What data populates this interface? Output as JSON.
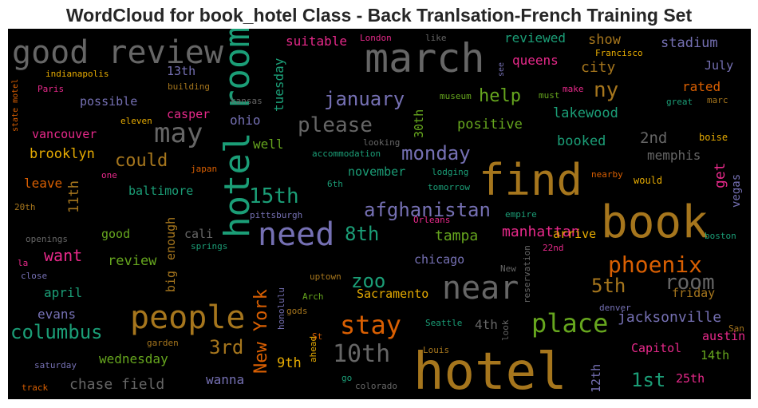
{
  "title": "WordCloud for book_hotel Class - Back Tranlsation-French Training Set",
  "colors": {
    "background": "#000000",
    "gray": "#666666",
    "orange": "#a6761d",
    "dark_orange": "#d95f02",
    "teal": "#1b9e77",
    "purple": "#7570b3",
    "magenta": "#e7298a",
    "green": "#66a61e",
    "gold": "#e6ab02"
  },
  "words": [
    {
      "text": "hotel",
      "color": "#a6761d"
    },
    {
      "text": "book",
      "color": "#a6761d"
    },
    {
      "text": "find",
      "color": "#a6761d"
    },
    {
      "text": "march",
      "color": "#666666"
    },
    {
      "text": "hotel room",
      "color": "#1b9e77"
    },
    {
      "text": "good review",
      "color": "#666666"
    },
    {
      "text": "need",
      "color": "#7570b3"
    },
    {
      "text": "people",
      "color": "#a6761d"
    },
    {
      "text": "near",
      "color": "#666666"
    },
    {
      "text": "may",
      "color": "#666666"
    },
    {
      "text": "place",
      "color": "#66a61e"
    },
    {
      "text": "stay",
      "color": "#d95f02"
    },
    {
      "text": "phoenix",
      "color": "#d95f02"
    },
    {
      "text": "10th",
      "color": "#666666"
    },
    {
      "text": "room",
      "color": "#666666"
    },
    {
      "text": "columbus",
      "color": "#1b9e77"
    },
    {
      "text": "please",
      "color": "#666666"
    },
    {
      "text": "january",
      "color": "#7570b3"
    },
    {
      "text": "monday",
      "color": "#7570b3"
    },
    {
      "text": "afghanistan",
      "color": "#7570b3"
    },
    {
      "text": "15th",
      "color": "#1b9e77"
    },
    {
      "text": "3rd",
      "color": "#a6761d"
    },
    {
      "text": "New York",
      "color": "#d95f02"
    },
    {
      "text": "5th",
      "color": "#a6761d"
    },
    {
      "text": "zoo",
      "color": "#1b9e77"
    },
    {
      "text": "8th",
      "color": "#1b9e77"
    },
    {
      "text": "1st",
      "color": "#1b9e77"
    },
    {
      "text": "ny",
      "color": "#a6761d"
    },
    {
      "text": "help",
      "color": "#66a61e"
    },
    {
      "text": "could",
      "color": "#a6761d"
    },
    {
      "text": "want",
      "color": "#e7298a"
    },
    {
      "text": "tampa",
      "color": "#66a61e"
    },
    {
      "text": "manhattan",
      "color": "#e7298a"
    },
    {
      "text": "get",
      "color": "#e7298a"
    },
    {
      "text": "chase field",
      "color": "#666666"
    },
    {
      "text": "jacksonville",
      "color": "#7570b3"
    },
    {
      "text": "city",
      "color": "#a6761d"
    },
    {
      "text": "lakewood",
      "color": "#1b9e77"
    },
    {
      "text": "positive",
      "color": "#66a61e"
    },
    {
      "text": "booked",
      "color": "#1b9e77"
    },
    {
      "text": "2nd",
      "color": "#666666"
    },
    {
      "text": "memphis",
      "color": "#666666"
    },
    {
      "text": "reviewed",
      "color": "#1b9e77"
    },
    {
      "text": "show",
      "color": "#a6761d"
    },
    {
      "text": "stadium",
      "color": "#7570b3"
    },
    {
      "text": "queens",
      "color": "#e7298a"
    },
    {
      "text": "suitable",
      "color": "#e7298a"
    },
    {
      "text": "rated",
      "color": "#d95f02"
    },
    {
      "text": "July",
      "color": "#7570b3"
    },
    {
      "text": "tuesday",
      "color": "#1b9e77"
    },
    {
      "text": "13th",
      "color": "#7570b3"
    },
    {
      "text": "possible",
      "color": "#7570b3"
    },
    {
      "text": "casper",
      "color": "#e7298a"
    },
    {
      "text": "ohio",
      "color": "#7570b3"
    },
    {
      "text": "vancouver",
      "color": "#e7298a"
    },
    {
      "text": "brooklyn",
      "color": "#e6ab02"
    },
    {
      "text": "well",
      "color": "#66a61e"
    },
    {
      "text": "11th",
      "color": "#a6761d"
    },
    {
      "text": "leave",
      "color": "#d95f02"
    },
    {
      "text": "baltimore",
      "color": "#1b9e77"
    },
    {
      "text": "good",
      "color": "#66a61e"
    },
    {
      "text": "cali",
      "color": "#666666"
    },
    {
      "text": "review",
      "color": "#66a61e"
    },
    {
      "text": "enough",
      "color": "#a6761d"
    },
    {
      "text": "big",
      "color": "#a6761d"
    },
    {
      "text": "april",
      "color": "#1b9e77"
    },
    {
      "text": "evans",
      "color": "#7570b3"
    },
    {
      "text": "wednesday",
      "color": "#66a61e"
    },
    {
      "text": "9th",
      "color": "#e6ab02"
    },
    {
      "text": "wanna",
      "color": "#7570b3"
    },
    {
      "text": "4th",
      "color": "#666666"
    },
    {
      "text": "Sacramento",
      "color": "#e6ab02"
    },
    {
      "text": "chicago",
      "color": "#7570b3"
    },
    {
      "text": "arrive",
      "color": "#e6ab02"
    },
    {
      "text": "november",
      "color": "#1b9e77"
    },
    {
      "text": "friday",
      "color": "#a6761d"
    },
    {
      "text": "austin",
      "color": "#e7298a"
    },
    {
      "text": "Capitol",
      "color": "#e7298a"
    },
    {
      "text": "14th",
      "color": "#66a61e"
    },
    {
      "text": "25th",
      "color": "#e7298a"
    },
    {
      "text": "12th",
      "color": "#7570b3"
    },
    {
      "text": "30th",
      "color": "#66a61e"
    },
    {
      "text": "vegas",
      "color": "#7570b3"
    },
    {
      "text": "would",
      "color": "#e6ab02"
    },
    {
      "text": "boise",
      "color": "#e6ab02"
    },
    {
      "text": "Francisco",
      "color": "#e6ab02"
    },
    {
      "text": "London",
      "color": "#e7298a"
    },
    {
      "text": "like",
      "color": "#666666"
    },
    {
      "text": "indianapolis",
      "color": "#e6ab02"
    },
    {
      "text": "building",
      "color": "#a6761d"
    },
    {
      "text": "Paris",
      "color": "#e7298a"
    },
    {
      "text": "kansas",
      "color": "#666666"
    },
    {
      "text": "museum",
      "color": "#66a61e"
    },
    {
      "text": "must",
      "color": "#66a61e"
    },
    {
      "text": "make",
      "color": "#e7298a"
    },
    {
      "text": "great",
      "color": "#1b9e77"
    },
    {
      "text": "marc",
      "color": "#a6761d"
    },
    {
      "text": "eleven",
      "color": "#e6ab02"
    },
    {
      "text": "one",
      "color": "#e7298a"
    },
    {
      "text": "japan",
      "color": "#d95f02"
    },
    {
      "text": "20th",
      "color": "#a6761d"
    },
    {
      "text": "openings",
      "color": "#666666"
    },
    {
      "text": "la",
      "color": "#e7298a"
    },
    {
      "text": "close",
      "color": "#7570b3"
    },
    {
      "text": "springs",
      "color": "#1b9e77"
    },
    {
      "text": "pittsburgh",
      "color": "#7570b3"
    },
    {
      "text": "accommodation",
      "color": "#1b9e77"
    },
    {
      "text": "looking",
      "color": "#666666"
    },
    {
      "text": "lodging",
      "color": "#1b9e77"
    },
    {
      "text": "6th",
      "color": "#1b9e77"
    },
    {
      "text": "tomorrow",
      "color": "#1b9e77"
    },
    {
      "text": "empire",
      "color": "#1b9e77"
    },
    {
      "text": "Orleans",
      "color": "#e7298a"
    },
    {
      "text": "nearby",
      "color": "#d95f02"
    },
    {
      "text": "boston",
      "color": "#1b9e77"
    },
    {
      "text": "22nd",
      "color": "#e7298a"
    },
    {
      "text": "uptown",
      "color": "#a6761d"
    },
    {
      "text": "New",
      "color": "#666666"
    },
    {
      "text": "reservation",
      "color": "#666666"
    },
    {
      "text": "denver",
      "color": "#7570b3"
    },
    {
      "text": "Arch",
      "color": "#66a61e"
    },
    {
      "text": "gods",
      "color": "#a6761d"
    },
    {
      "text": "honolulu",
      "color": "#7570b3"
    },
    {
      "text": "ahead",
      "color": "#e6ab02"
    },
    {
      "text": "St",
      "color": "#d95f02"
    },
    {
      "text": "Seattle",
      "color": "#1b9e77"
    },
    {
      "text": "Louis",
      "color": "#a6761d"
    },
    {
      "text": "look",
      "color": "#666666"
    },
    {
      "text": "garden",
      "color": "#a6761d"
    },
    {
      "text": "saturday",
      "color": "#7570b3"
    },
    {
      "text": "track",
      "color": "#d95f02"
    },
    {
      "text": "go",
      "color": "#1b9e77"
    },
    {
      "text": "colorado",
      "color": "#666666"
    },
    {
      "text": "San",
      "color": "#a6761d"
    },
    {
      "text": "state motel",
      "color": "#d95f02"
    },
    {
      "text": "see",
      "color": "#7570b3"
    }
  ]
}
